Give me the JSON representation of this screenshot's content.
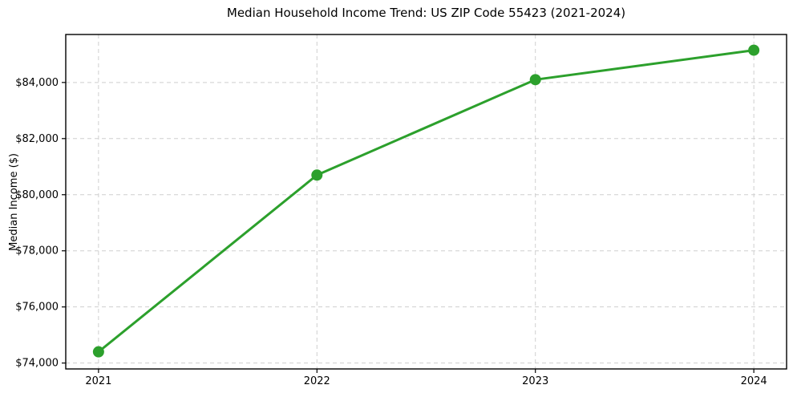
{
  "chart_data": {
    "type": "line",
    "title": "Median Household Income Trend: US ZIP Code 55423 (2021-2024)",
    "xlabel": "",
    "ylabel": "Median Income ($)",
    "x": [
      2021,
      2022,
      2023,
      2024
    ],
    "values": [
      74400,
      80700,
      84100,
      85150
    ],
    "xticks": [
      {
        "value": 2021,
        "label": "2021"
      },
      {
        "value": 2022,
        "label": "2022"
      },
      {
        "value": 2023,
        "label": "2023"
      },
      {
        "value": 2024,
        "label": "2024"
      }
    ],
    "yticks": [
      {
        "value": 74000,
        "label": "$74,000"
      },
      {
        "value": 76000,
        "label": "$76,000"
      },
      {
        "value": 78000,
        "label": "$78,000"
      },
      {
        "value": 80000,
        "label": "$80,000"
      },
      {
        "value": 82000,
        "label": "$82,000"
      },
      {
        "value": 84000,
        "label": "$84,000"
      }
    ],
    "xlim": [
      2020.85,
      2024.15
    ],
    "ylim": [
      73790,
      85710
    ],
    "grid": "dashed-both-axes",
    "legend": "none",
    "colors": {
      "line": "#2ca02c",
      "marker": "#2ca02c",
      "grid": "#cfcfcf",
      "axis": "#000000",
      "background": "#ffffff"
    }
  }
}
